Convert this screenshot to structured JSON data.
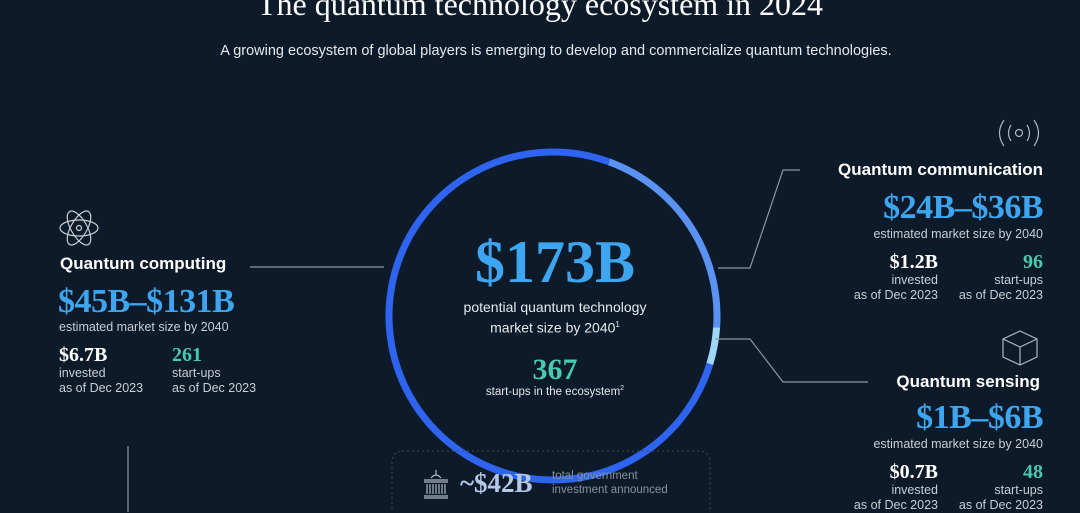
{
  "header": {
    "title": "The quantum technology ecosystem in 2024",
    "subtitle": "A growing ecosystem of global players is emerging to develop and commercialize quantum technologies."
  },
  "center": {
    "total": "$173B",
    "total_label_1": "potential quantum technology",
    "total_label_2": "market size by 2040",
    "total_sup": "1",
    "startups": "367",
    "startups_label": "start-ups in the ecosystem",
    "startups_sup": "2"
  },
  "ring": {
    "segments": [
      {
        "name": "Quantum computing",
        "color": "#2f64f0"
      },
      {
        "name": "Quantum communication",
        "color": "#5b93f5"
      },
      {
        "name": "Quantum sensing",
        "color": "#9fd8f7"
      }
    ]
  },
  "government": {
    "icon": "government-building-icon",
    "value": "~$42B",
    "label_1": "total government",
    "label_2": "investment announced"
  },
  "computing": {
    "icon": "atom-icon",
    "title": "Quantum computing",
    "range": "$45B–$131B",
    "range_label": "estimated market size by 2040",
    "invested": "$6.7B",
    "invested_label_1": "invested",
    "invested_label_2": "as of Dec 2023",
    "startups": "261",
    "startups_label_1": "start-ups",
    "startups_label_2": "as of Dec 2023"
  },
  "communication": {
    "icon": "broadcast-signal-icon",
    "title": "Quantum communication",
    "range": "$24B–$36B",
    "range_label": "estimated market size by 2040",
    "invested": "$1.2B",
    "invested_label_1": "invested",
    "invested_label_2": "as of Dec 2023",
    "startups": "96",
    "startups_label_1": "start-ups",
    "startups_label_2": "as of Dec 2023"
  },
  "sensing": {
    "icon": "cube-icon",
    "title": "Quantum sensing",
    "range": "$1B–$6B",
    "range_label": "estimated market size by 2040",
    "invested": "$0.7B",
    "invested_label_1": "invested",
    "invested_label_2": "as of Dec 2023",
    "startups": "48",
    "startups_label_1": "start-ups",
    "startups_label_2": "as of Dec 2023"
  }
}
